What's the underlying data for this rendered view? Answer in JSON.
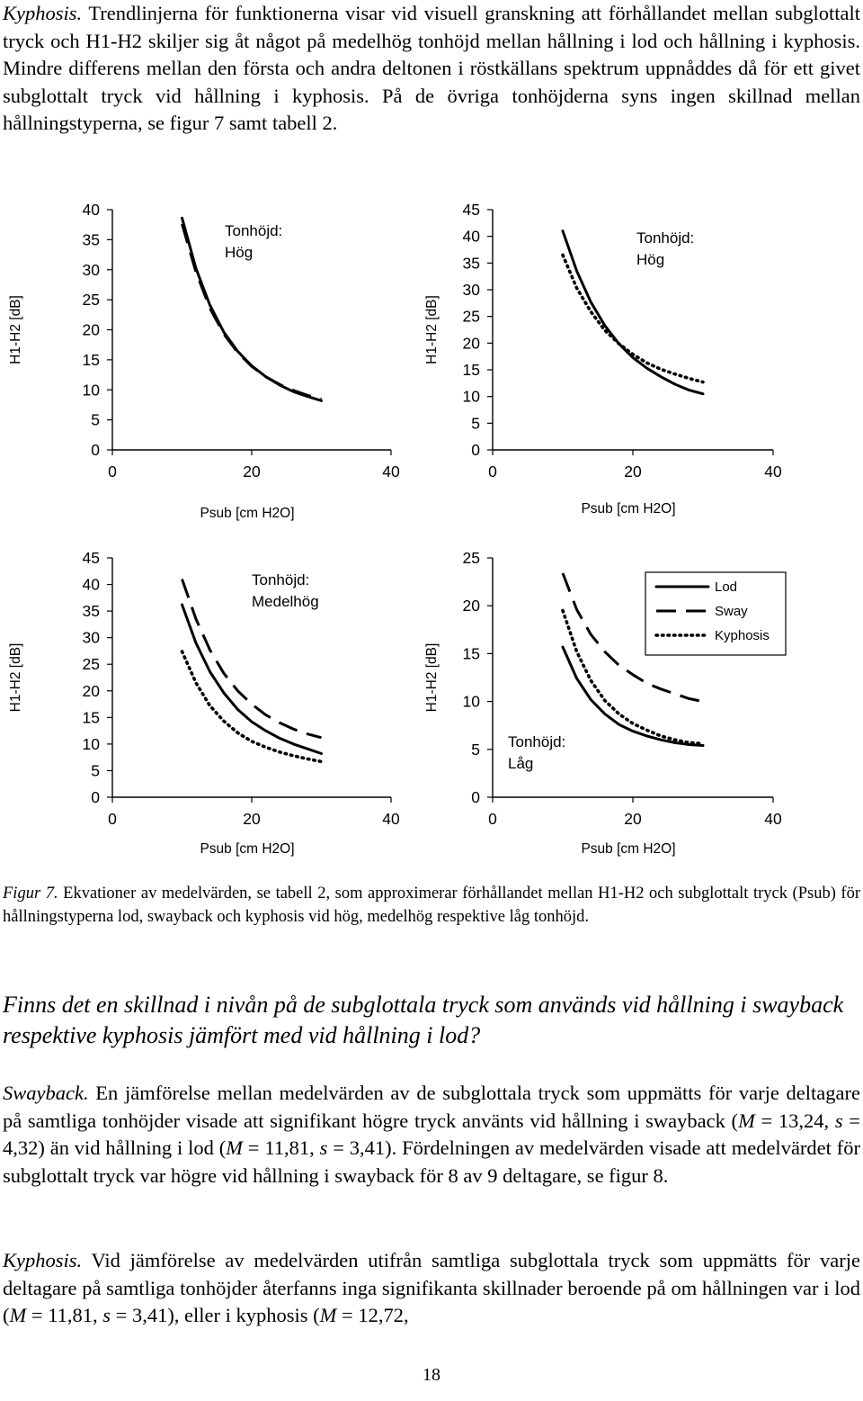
{
  "intro": {
    "lead": "Kyphosis.",
    "body": " Trendlinjerna för funktionerna visar vid visuell granskning att förhållandet mellan subglottalt tryck och H1-H2 skiljer sig åt något på medelhög tonhöjd mellan hållning i lod och hållning i kyphosis. Mindre differens mellan den första och andra deltonen i röstkällans spektrum uppnåddes då för ett givet subglottalt tryck vid hållning i kyphosis. På de övriga tonhöjderna syns ingen skillnad mellan hållningstyperna, se figur 7 samt tabell 2."
  },
  "chart_data": [
    {
      "type": "line",
      "annotation": "Tonhöjd: Hög",
      "annotation_lines": [
        "Tonhöjd:",
        "Hög"
      ],
      "xlabel": "Psub [cm H2O]",
      "ylabel": "H1-H2 [dB]",
      "xlim": [
        0,
        40
      ],
      "ylim": [
        0,
        40
      ],
      "xticks": [
        0,
        20,
        40
      ],
      "yticks": [
        0,
        5,
        10,
        15,
        20,
        25,
        30,
        35,
        40
      ],
      "grid": false,
      "series": [
        {
          "name": "Lod",
          "style": "solid",
          "x": [
            10,
            12,
            14,
            16,
            18,
            20,
            22,
            24,
            26,
            28,
            30
          ],
          "y": [
            38.6,
            30.2,
            24.1,
            19.6,
            16.4,
            14.0,
            12.2,
            10.8,
            9.7,
            8.9,
            8.2
          ]
        },
        {
          "name": "Sway",
          "style": "dashed",
          "x": [
            10,
            12,
            14,
            16,
            18,
            20,
            22,
            24,
            26,
            28,
            30
          ],
          "y": [
            37.6,
            29.6,
            23.6,
            19.3,
            16.2,
            13.9,
            12.2,
            10.9,
            9.9,
            9.1,
            8.5
          ]
        }
      ]
    },
    {
      "type": "line",
      "annotation": "Tonhöjd: Hög",
      "annotation_lines": [
        "Tonhöjd:",
        "Hög"
      ],
      "xlabel": "Psub [cm H2O]",
      "ylabel": "H1-H2 [dB]",
      "xlim": [
        0,
        40
      ],
      "ylim": [
        0,
        45
      ],
      "xticks": [
        0,
        20,
        40
      ],
      "yticks": [
        0,
        5,
        10,
        15,
        20,
        25,
        30,
        35,
        40,
        45
      ],
      "grid": false,
      "series": [
        {
          "name": "Lod",
          "style": "solid",
          "x": [
            10,
            12,
            14,
            16,
            18,
            20,
            22,
            24,
            26,
            28,
            30
          ],
          "y": [
            41.0,
            33.5,
            27.7,
            23.3,
            19.9,
            17.3,
            15.3,
            13.7,
            12.3,
            11.2,
            10.5
          ]
        },
        {
          "name": "Kyphosis",
          "style": "dotted",
          "x": [
            10,
            12,
            14,
            16,
            18,
            20,
            22,
            24,
            26,
            28,
            30
          ],
          "y": [
            36.5,
            30.3,
            25.9,
            22.4,
            19.9,
            17.9,
            16.3,
            15.1,
            14.2,
            13.4,
            12.7
          ]
        }
      ]
    },
    {
      "type": "line",
      "annotation": "Tonhöjd: Medelhög",
      "annotation_lines": [
        "Tonhöjd:",
        "Medelhög"
      ],
      "xlabel": "Psub [cm H2O]",
      "ylabel": "H1-H2 [dB]",
      "xlim": [
        0,
        40
      ],
      "ylim": [
        0,
        45
      ],
      "xticks": [
        0,
        20,
        40
      ],
      "yticks": [
        0,
        5,
        10,
        15,
        20,
        25,
        30,
        35,
        40,
        45
      ],
      "grid": false,
      "series": [
        {
          "name": "Lod",
          "style": "solid",
          "x": [
            10,
            12,
            14,
            16,
            18,
            20,
            22,
            24,
            26,
            28,
            30
          ],
          "y": [
            36.2,
            29.0,
            23.6,
            19.6,
            16.5,
            14.2,
            12.5,
            11.1,
            10.0,
            9.1,
            8.2
          ]
        },
        {
          "name": "Sway",
          "style": "dashed",
          "x": [
            10,
            12,
            14,
            16,
            18,
            20,
            22,
            24,
            26,
            28,
            30
          ],
          "y": [
            41.0,
            33.5,
            27.7,
            23.3,
            20.0,
            17.5,
            15.5,
            14.0,
            12.8,
            11.9,
            11.2
          ]
        },
        {
          "name": "Kyphosis",
          "style": "dotted",
          "x": [
            10,
            12,
            14,
            16,
            18,
            20,
            22,
            24,
            26,
            28,
            30
          ],
          "y": [
            27.4,
            21.5,
            17.2,
            14.3,
            12.1,
            10.5,
            9.4,
            8.5,
            7.8,
            7.2,
            6.7
          ]
        }
      ]
    },
    {
      "type": "line",
      "annotation": "Tonhöjd: Låg",
      "annotation_lines": [
        "Tonhöjd:",
        "Låg"
      ],
      "xlabel": "Psub [cm H2O]",
      "ylabel": "H1-H2 [dB]",
      "xlim": [
        0,
        40
      ],
      "ylim": [
        0,
        25
      ],
      "xticks": [
        0,
        20,
        40
      ],
      "yticks": [
        0,
        5,
        10,
        15,
        20,
        25
      ],
      "grid": false,
      "legend": "top-right",
      "series": [
        {
          "name": "Lod",
          "style": "solid",
          "x": [
            10,
            12,
            14,
            16,
            18,
            20,
            22,
            24,
            26,
            28,
            30
          ],
          "y": [
            15.7,
            12.4,
            10.2,
            8.7,
            7.6,
            6.9,
            6.4,
            6.0,
            5.7,
            5.5,
            5.4
          ]
        },
        {
          "name": "Sway",
          "style": "dashed",
          "x": [
            10,
            12,
            14,
            16,
            18,
            20,
            22,
            24,
            26,
            28,
            30
          ],
          "y": [
            23.4,
            19.6,
            17.0,
            15.2,
            13.8,
            12.8,
            11.9,
            11.3,
            10.8,
            10.3,
            10.0
          ]
        },
        {
          "name": "Kyphosis",
          "style": "dotted",
          "x": [
            10,
            12,
            14,
            16,
            18,
            20,
            22,
            24,
            26,
            28,
            30
          ],
          "y": [
            19.5,
            15.2,
            12.2,
            10.1,
            8.7,
            7.7,
            7.0,
            6.4,
            6.0,
            5.7,
            5.6
          ]
        }
      ]
    }
  ],
  "caption": {
    "label": "Figur 7.",
    "text": " Ekvationer av medelvärden, se tabell 2, som approximerar förhållandet mellan H1-H2 och subglottalt tryck (Psub) för hållningstyperna lod, swayback och kyphosis vid hög, medelhög respektive låg tonhöjd."
  },
  "question": "Finns det en skillnad i nivån på de subglottala tryck som används vid hållning i swayback respektive kyphosis jämfört med vid hållning i lod?",
  "swayback": {
    "lead": "Swayback.",
    "t1": " En jämförelse mellan medelvärden av de subglottala tryck som uppmätts för varje deltagare på samtliga tonhöjder visade att signifikant högre tryck använts vid hållning i swayback (",
    "m_sym": "M",
    "m1": " = 13,24, ",
    "s_sym": "s",
    "s1": " = 4,32) än vid hållning i lod (",
    "m2": " = 11,81, ",
    "s2": " = 3,41). Fördelningen av medelvärden visade att medelvärdet för subglottalt tryck var högre vid hållning i swayback för 8 av 9 deltagare, se figur 8."
  },
  "kyphosis": {
    "lead": "Kyphosis.",
    "t1": " Vid jämförelse av medelvärden utifrån samtliga subglottala tryck som uppmätts för varje deltagare på samtliga tonhöjder återfanns inga signifikanta skillnader beroende på om hållningen var i lod (",
    "m_sym": "M",
    "m1": " = 11,81, ",
    "s_sym": "s",
    "s1": " = 3,41), eller i kyphosis (",
    "m2": " = 12,72,"
  },
  "page_number": "18"
}
